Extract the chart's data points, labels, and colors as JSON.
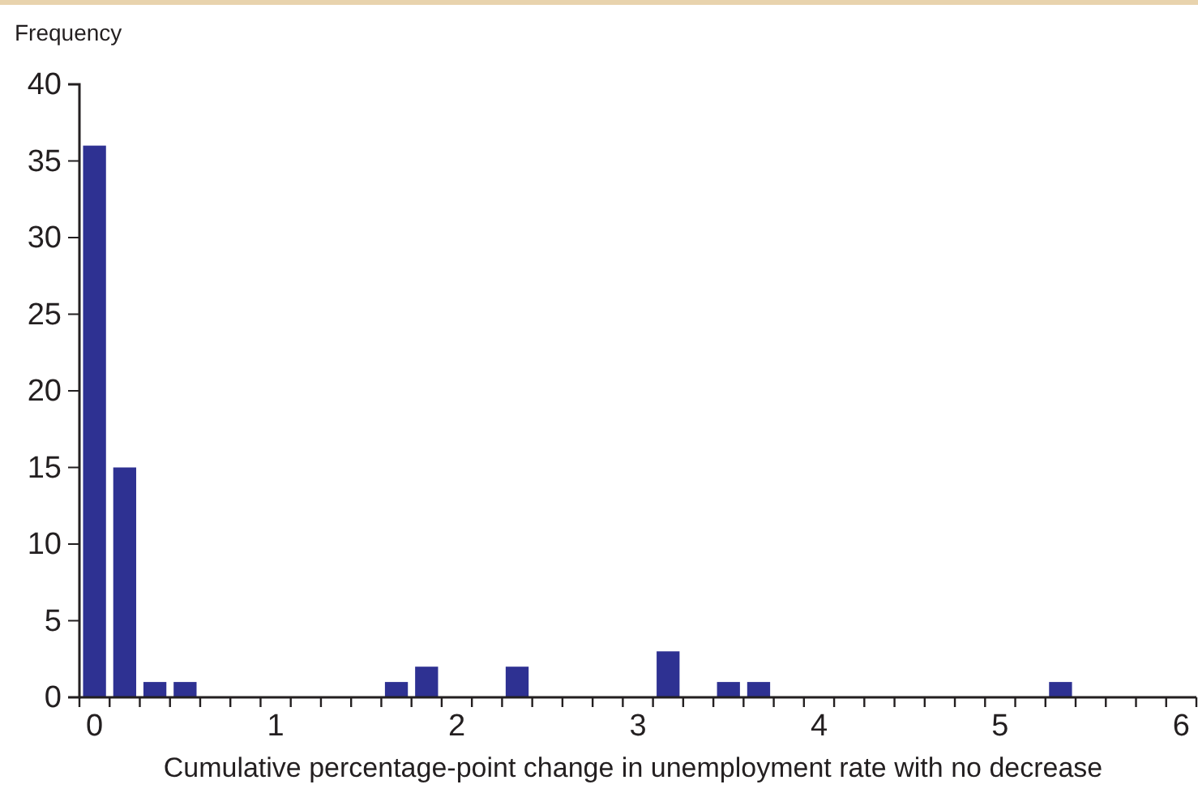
{
  "chart_data": {
    "type": "bar",
    "ylabel": "Frequency",
    "xlabel": "Cumulative percentage-point change in unemployment rate with no decrease",
    "categories": [
      "0",
      null,
      null,
      null,
      null,
      null,
      "1",
      null,
      null,
      null,
      null,
      null,
      "2",
      null,
      null,
      null,
      null,
      null,
      "3",
      null,
      null,
      null,
      null,
      null,
      "4",
      null,
      null,
      null,
      null,
      null,
      "5",
      null,
      null,
      null,
      null,
      null,
      "6"
    ],
    "values": [
      36,
      15,
      1,
      1,
      0,
      0,
      0,
      0,
      0,
      0,
      1,
      2,
      0,
      0,
      2,
      0,
      0,
      0,
      0,
      3,
      0,
      1,
      1,
      0,
      0,
      0,
      0,
      0,
      0,
      0,
      0,
      0,
      1,
      0,
      0,
      0,
      0
    ],
    "color": "#2e3192",
    "ylim": [
      0,
      40
    ],
    "yticks": [
      0,
      5,
      10,
      15,
      20,
      25,
      30,
      35,
      40
    ],
    "grid": false
  }
}
